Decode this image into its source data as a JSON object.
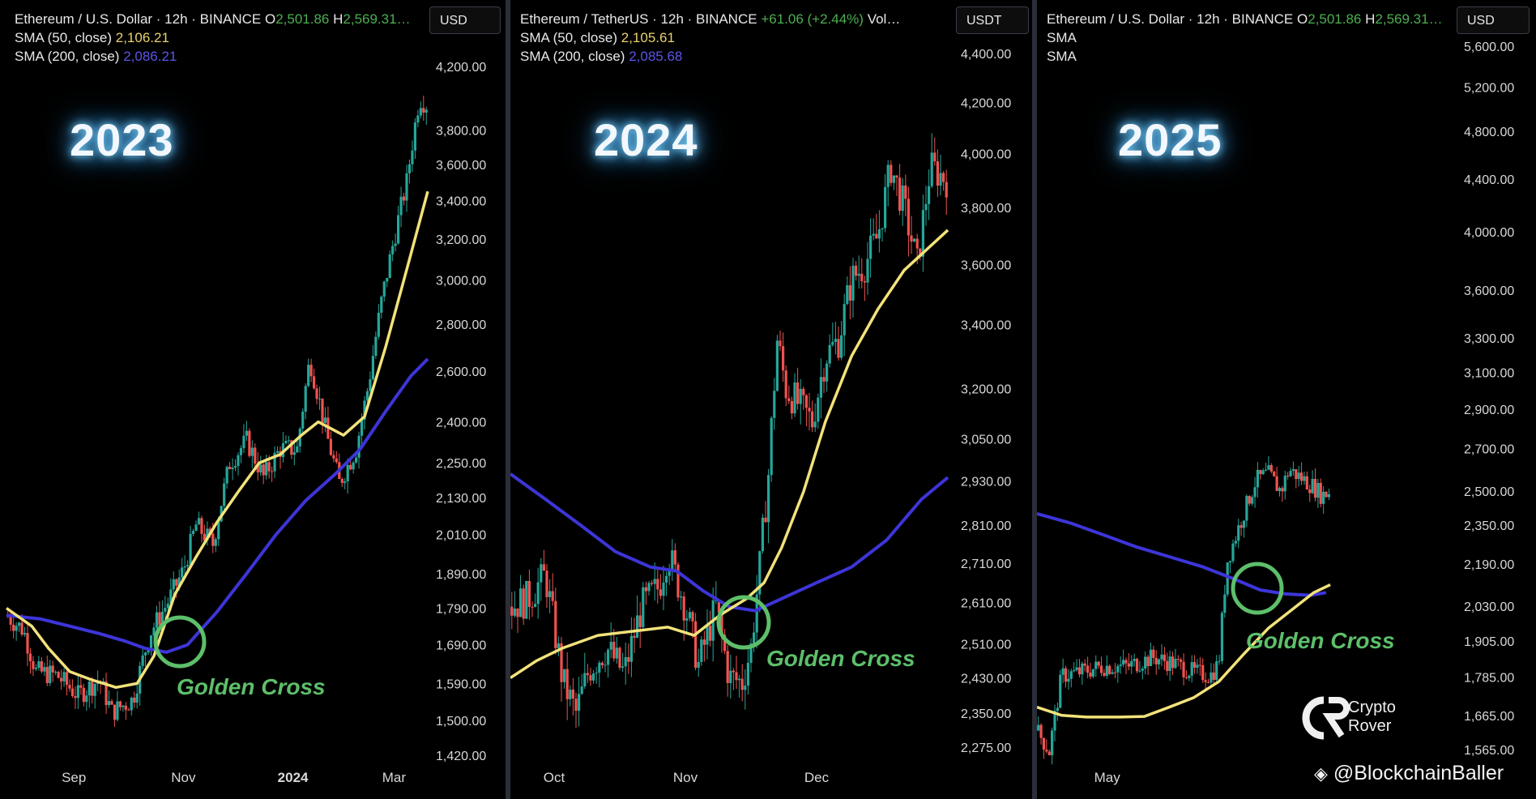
{
  "chart_data": [
    {
      "type": "candlestick",
      "title": "Ethereum / U.S. Dollar · 12h · BINANCE",
      "ohlc_header": {
        "o_label": "O",
        "o_value": "2,501.86",
        "h_label": "H",
        "h_value": "2,569.31…"
      },
      "sma50_label": "SMA (50, close)",
      "sma50_value": "2,106.21",
      "sma200_label": "SMA (200, close)",
      "sma200_value": "2,086.21",
      "currency": "USD",
      "year_label": "2023",
      "annotation": "Golden Cross",
      "y_scale": "log",
      "y_ticks": [
        4200,
        3800,
        3600,
        3400,
        3200,
        3000,
        2800,
        2600,
        2400,
        2250,
        2130,
        2010,
        1890,
        1790,
        1690,
        1590,
        1500,
        1420
      ],
      "y_tick_labels": [
        "4,200.00",
        "3,800.00",
        "3,600.00",
        "3,400.00",
        "3,200.00",
        "3,000.00",
        "2,800.00",
        "2,600.00",
        "2,400.00",
        "2,250.00",
        "2,130.00",
        "2,010.00",
        "1,890.00",
        "1,790.00",
        "1,690.00",
        "1,590.00",
        "1,500.00",
        "1,420.00"
      ],
      "x_ticks": [
        {
          "label": "Sep",
          "bold": false
        },
        {
          "label": "Nov",
          "bold": false
        },
        {
          "label": "2024",
          "bold": true
        },
        {
          "label": "Mar",
          "bold": false
        }
      ],
      "price_path": [
        [
          0,
          1770
        ],
        [
          0.04,
          1730
        ],
        [
          0.07,
          1620
        ],
        [
          0.12,
          1610
        ],
        [
          0.17,
          1560
        ],
        [
          0.22,
          1600
        ],
        [
          0.25,
          1520
        ],
        [
          0.3,
          1550
        ],
        [
          0.34,
          1720
        ],
        [
          0.38,
          1800
        ],
        [
          0.42,
          1900
        ],
        [
          0.45,
          2040
        ],
        [
          0.49,
          1980
        ],
        [
          0.53,
          2250
        ],
        [
          0.57,
          2330
        ],
        [
          0.61,
          2200
        ],
        [
          0.65,
          2300
        ],
        [
          0.69,
          2300
        ],
        [
          0.72,
          2650
        ],
        [
          0.76,
          2350
        ],
        [
          0.79,
          2180
        ],
        [
          0.83,
          2300
        ],
        [
          0.86,
          2550
        ],
        [
          0.89,
          2900
        ],
        [
          0.92,
          3200
        ],
        [
          0.95,
          3500
        ],
        [
          0.98,
          4000
        ],
        [
          1,
          3950
        ]
      ],
      "sma50": [
        [
          0,
          1790
        ],
        [
          0.06,
          1740
        ],
        [
          0.1,
          1680
        ],
        [
          0.15,
          1620
        ],
        [
          0.2,
          1600
        ],
        [
          0.26,
          1580
        ],
        [
          0.31,
          1590
        ],
        [
          0.35,
          1660
        ],
        [
          0.4,
          1830
        ],
        [
          0.45,
          1940
        ],
        [
          0.5,
          2050
        ],
        [
          0.55,
          2150
        ],
        [
          0.6,
          2250
        ],
        [
          0.65,
          2280
        ],
        [
          0.7,
          2350
        ],
        [
          0.74,
          2400
        ],
        [
          0.8,
          2350
        ],
        [
          0.85,
          2420
        ],
        [
          0.9,
          2700
        ],
        [
          0.95,
          3050
        ],
        [
          1,
          3450
        ]
      ],
      "sma200": [
        [
          0,
          1770
        ],
        [
          0.08,
          1760
        ],
        [
          0.15,
          1740
        ],
        [
          0.22,
          1720
        ],
        [
          0.28,
          1700
        ],
        [
          0.33,
          1680
        ],
        [
          0.38,
          1670
        ],
        [
          0.43,
          1690
        ],
        [
          0.5,
          1780
        ],
        [
          0.57,
          1890
        ],
        [
          0.64,
          2010
        ],
        [
          0.71,
          2120
        ],
        [
          0.78,
          2210
        ],
        [
          0.84,
          2300
        ],
        [
          0.9,
          2440
        ],
        [
          0.96,
          2580
        ],
        [
          1,
          2650
        ]
      ],
      "cross": [
        0.38,
        1680
      ]
    },
    {
      "type": "candlestick",
      "title": "Ethereum / TetherUS · 12h · BINANCE",
      "change": "+61.06 (+2.44%)",
      "volume_label": "Vol…",
      "sma50_label": "SMA (50, close)",
      "sma50_value": "2,105.61",
      "sma200_label": "SMA (200, close)",
      "sma200_value": "2,085.68",
      "currency": "USDT",
      "year_label": "2024",
      "annotation": "Golden Cross",
      "y_scale": "log",
      "y_ticks": [
        4400,
        4200,
        4000,
        3800,
        3600,
        3400,
        3200,
        3050,
        2930,
        2810,
        2710,
        2610,
        2510,
        2430,
        2350,
        2275
      ],
      "y_tick_labels": [
        "4,400.00",
        "4,200.00",
        "4,000.00",
        "3,800.00",
        "3,600.00",
        "3,400.00",
        "3,200.00",
        "3,050.00",
        "2,930.00",
        "2,810.00",
        "2,710.00",
        "2,610.00",
        "2,510.00",
        "2,430.00",
        "2,350.00",
        "2,275.00"
      ],
      "x_ticks": [
        {
          "label": "Oct",
          "bold": false
        },
        {
          "label": "Nov",
          "bold": false
        },
        {
          "label": "Dec",
          "bold": false
        }
      ],
      "price_path": [
        [
          0,
          2600
        ],
        [
          0.04,
          2620
        ],
        [
          0.08,
          2680
        ],
        [
          0.12,
          2420
        ],
        [
          0.15,
          2350
        ],
        [
          0.18,
          2450
        ],
        [
          0.22,
          2500
        ],
        [
          0.26,
          2440
        ],
        [
          0.3,
          2600
        ],
        [
          0.34,
          2650
        ],
        [
          0.36,
          2740
        ],
        [
          0.4,
          2600
        ],
        [
          0.43,
          2460
        ],
        [
          0.47,
          2600
        ],
        [
          0.5,
          2430
        ],
        [
          0.53,
          2420
        ],
        [
          0.55,
          2500
        ],
        [
          0.57,
          2700
        ],
        [
          0.59,
          2950
        ],
        [
          0.61,
          3350
        ],
        [
          0.63,
          3200
        ],
        [
          0.66,
          3150
        ],
        [
          0.69,
          3100
        ],
        [
          0.72,
          3300
        ],
        [
          0.75,
          3350
        ],
        [
          0.78,
          3550
        ],
        [
          0.81,
          3600
        ],
        [
          0.84,
          3700
        ],
        [
          0.87,
          3950
        ],
        [
          0.9,
          3800
        ],
        [
          0.93,
          3600
        ],
        [
          0.96,
          3950
        ],
        [
          1,
          3900
        ]
      ],
      "sma50": [
        [
          0,
          2430
        ],
        [
          0.06,
          2470
        ],
        [
          0.12,
          2500
        ],
        [
          0.2,
          2530
        ],
        [
          0.28,
          2540
        ],
        [
          0.36,
          2550
        ],
        [
          0.42,
          2530
        ],
        [
          0.48,
          2580
        ],
        [
          0.54,
          2620
        ],
        [
          0.58,
          2660
        ],
        [
          0.62,
          2750
        ],
        [
          0.67,
          2900
        ],
        [
          0.72,
          3100
        ],
        [
          0.78,
          3300
        ],
        [
          0.84,
          3450
        ],
        [
          0.9,
          3580
        ],
        [
          1,
          3720
        ]
      ],
      "sma200": [
        [
          0,
          2950
        ],
        [
          0.08,
          2880
        ],
        [
          0.16,
          2810
        ],
        [
          0.24,
          2740
        ],
        [
          0.32,
          2700
        ],
        [
          0.38,
          2690
        ],
        [
          0.44,
          2640
        ],
        [
          0.5,
          2600
        ],
        [
          0.56,
          2590
        ],
        [
          0.62,
          2620
        ],
        [
          0.7,
          2660
        ],
        [
          0.78,
          2700
        ],
        [
          0.86,
          2770
        ],
        [
          0.94,
          2880
        ],
        [
          1,
          2940
        ]
      ],
      "cross": [
        0.56,
        2600
      ]
    },
    {
      "type": "candlestick",
      "title": "Ethereum / U.S. Dollar · 12h · BINANCE",
      "ohlc_header": {
        "o_label": "O",
        "o_value": "2,501.86",
        "h_label": "H",
        "h_value": "2,569.31…"
      },
      "sma50_label": "SMA",
      "sma200_label": "SMA",
      "currency": "USD",
      "year_label": "2025",
      "annotation": "Golden Cross",
      "y_scale": "log",
      "y_ticks": [
        5600,
        5200,
        4800,
        4400,
        4000,
        3600,
        3300,
        3100,
        2900,
        2700,
        2500,
        2350,
        2190,
        2030,
        1905,
        1785,
        1665,
        1565
      ],
      "y_tick_labels": [
        "5,600.00",
        "5,200.00",
        "4,800.00",
        "4,400.00",
        "4,000.00",
        "3,600.00",
        "3,300.00",
        "3,100.00",
        "2,900.00",
        "2,700.00",
        "2,500.00",
        "2,350.00",
        "2,190.00",
        "2,030.00",
        "1,905.00",
        "1,785.00",
        "1,665.00",
        "1,565.00"
      ],
      "x_ticks": [
        {
          "label": "May",
          "bold": false
        }
      ],
      "price_path": [
        [
          0,
          1620
        ],
        [
          0.03,
          1560
        ],
        [
          0.06,
          1790
        ],
        [
          0.1,
          1800
        ],
        [
          0.16,
          1820
        ],
        [
          0.22,
          1820
        ],
        [
          0.28,
          1850
        ],
        [
          0.33,
          1830
        ],
        [
          0.38,
          1800
        ],
        [
          0.42,
          1790
        ],
        [
          0.44,
          1830
        ],
        [
          0.46,
          2200
        ],
        [
          0.48,
          2300
        ],
        [
          0.5,
          2400
        ],
        [
          0.53,
          2550
        ],
        [
          0.56,
          2580
        ],
        [
          0.59,
          2500
        ],
        [
          0.61,
          2600
        ],
        [
          0.64,
          2560
        ],
        [
          0.67,
          2520
        ],
        [
          0.69,
          2480
        ],
        [
          0.71,
          2500
        ]
      ],
      "sma50": [
        [
          0,
          1690
        ],
        [
          0.06,
          1665
        ],
        [
          0.12,
          1660
        ],
        [
          0.2,
          1660
        ],
        [
          0.26,
          1662
        ],
        [
          0.32,
          1690
        ],
        [
          0.38,
          1720
        ],
        [
          0.44,
          1770
        ],
        [
          0.5,
          1860
        ],
        [
          0.56,
          1950
        ],
        [
          0.62,
          2020
        ],
        [
          0.67,
          2080
        ],
        [
          0.71,
          2110
        ]
      ],
      "sma200": [
        [
          0,
          2400
        ],
        [
          0.08,
          2360
        ],
        [
          0.16,
          2310
        ],
        [
          0.24,
          2260
        ],
        [
          0.32,
          2220
        ],
        [
          0.4,
          2180
        ],
        [
          0.48,
          2130
        ],
        [
          0.54,
          2090
        ],
        [
          0.6,
          2075
        ],
        [
          0.66,
          2070
        ],
        [
          0.7,
          2080
        ]
      ],
      "cross": [
        0.7,
        2090
      ]
    }
  ],
  "branding": {
    "logo_line1": "Crypto",
    "logo_line2": "Rover",
    "watermark": "@BlockchainBaller",
    "colors": {
      "up": "#26a69a",
      "down": "#ef5350",
      "sma50": "#f2e27a",
      "sma200": "#3d35d8",
      "cross": "#5dbf6a"
    }
  }
}
